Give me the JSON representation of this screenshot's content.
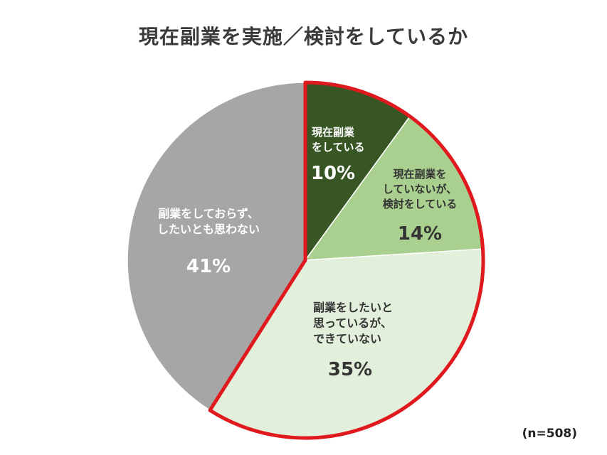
{
  "chart_data": {
    "type": "pie",
    "title": "現在副業を実施／検討をしているか",
    "note": "(n=508)",
    "slices": [
      {
        "label_lines": [
          "現在副業",
          "をしている"
        ],
        "value": 10,
        "value_label": "10%",
        "color": "#375623",
        "text_color": "#ffffff",
        "highlighted": true
      },
      {
        "label_lines": [
          "現在副業を",
          "していないが、",
          "検討をしている"
        ],
        "value": 14,
        "value_label": "14%",
        "color": "#a9d08e",
        "text_color": "#333333",
        "highlighted": true
      },
      {
        "label_lines": [
          "副業をしたいと",
          "思っているが、",
          "できていない"
        ],
        "value": 35,
        "value_label": "35%",
        "color": "#e2efda",
        "text_color": "#333333",
        "highlighted": true
      },
      {
        "label_lines": [
          "副業をしておらず、",
          "したいとも思わない"
        ],
        "value": 41,
        "value_label": "41%",
        "color": "#a6a6a6",
        "text_color": "#ffffff",
        "highlighted": false
      }
    ],
    "highlight_color": "#e0191f",
    "start_angle_deg": 0,
    "direction": "clockwise"
  }
}
